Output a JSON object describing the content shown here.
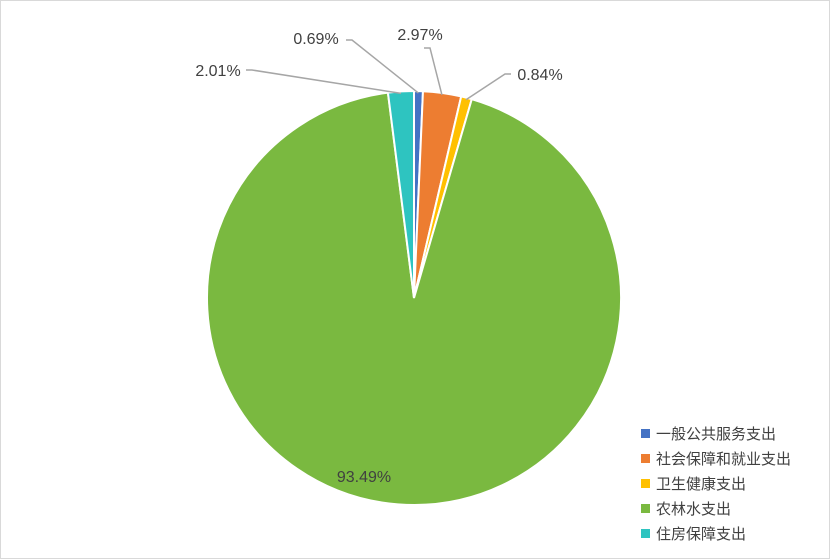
{
  "chart_data": {
    "type": "pie",
    "categories": [
      "一般公共服务支出",
      "社会保障和就业支出",
      "卫生健康支出",
      "农林水支出",
      "住房保障支出"
    ],
    "values": [
      0.69,
      2.97,
      0.84,
      93.49,
      2.01
    ],
    "data_labels": [
      "0.69%",
      "2.97%",
      "0.84%",
      "93.49%",
      "2.01%"
    ],
    "colors": [
      "#4472C4",
      "#ED7D31",
      "#FFC000",
      "#7AB940",
      "#2EC4C0"
    ],
    "start_angle_deg": 0,
    "direction": "clockwise",
    "legend_position": "bottom-right"
  },
  "legend": {
    "items": [
      {
        "label": "一般公共服务支出",
        "color": "#4472C4"
      },
      {
        "label": "社会保障和就业支出",
        "color": "#ED7D31"
      },
      {
        "label": "卫生健康支出",
        "color": "#FFC000"
      },
      {
        "label": "农林水支出",
        "color": "#7AB940"
      },
      {
        "label": "住房保障支出",
        "color": "#2EC4C0"
      }
    ]
  }
}
